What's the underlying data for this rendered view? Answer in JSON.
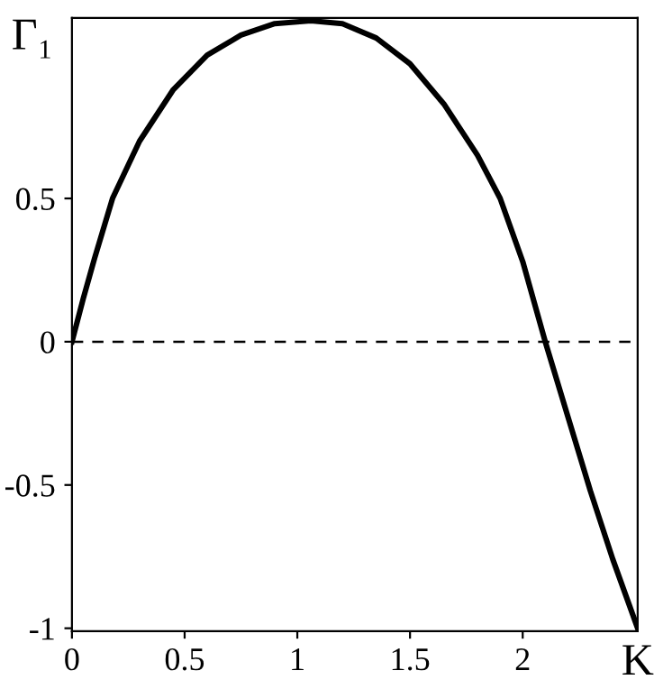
{
  "chart_data": {
    "type": "line",
    "xlabel": "K",
    "ylabel": "Γ₁",
    "x": [
      0,
      0.05,
      0.1,
      0.18,
      0.3,
      0.45,
      0.6,
      0.75,
      0.9,
      1.06,
      1.2,
      1.35,
      1.5,
      1.65,
      1.8,
      1.9,
      2.0,
      2.1,
      2.2,
      2.3,
      2.4,
      2.51
    ],
    "series": [
      {
        "color": "#000000",
        "values": [
          0,
          0.15,
          0.29,
          0.5,
          0.7,
          0.88,
          1.0,
          1.07,
          1.11,
          1.12,
          1.11,
          1.06,
          0.97,
          0.83,
          0.65,
          0.5,
          0.28,
          0,
          -0.26,
          -0.52,
          -0.76,
          -1.0
        ]
      }
    ],
    "xlim": [
      0,
      2.51
    ],
    "ylim": [
      -1.01,
      1.13
    ],
    "xticks": [
      0,
      0.5,
      1,
      1.5,
      2
    ],
    "yticks": [
      -1,
      -0.5,
      0,
      0.5
    ],
    "ref_lines": [
      {
        "axis": "y",
        "value": 0,
        "color": "#000000",
        "line_style": "dashed"
      }
    ],
    "grid": false,
    "legend": false
  }
}
